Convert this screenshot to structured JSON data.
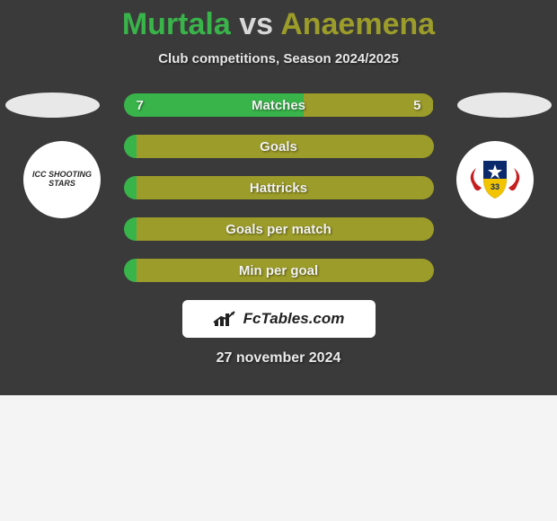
{
  "colors": {
    "page_bg": "#f4f4f4",
    "panel_bg": "#3a3a3a",
    "player1": "#39b44a",
    "player2": "#9c9c2a",
    "neutral_text": "#d8d8d8",
    "white": "#ffffff",
    "pill_bg": "#e8e8e8"
  },
  "title": {
    "player1": "Murtala",
    "vs": "vs",
    "player2": "Anaemena"
  },
  "subtitle": "Club competitions, Season 2024/2025",
  "side_logos": {
    "left_text": "ICC SHOOTING STARS",
    "right_alt": "REMO STARS FOOTBALL CLUB",
    "right_colors": {
      "wing": "#c61f1f",
      "shield_top": "#0b2a6b",
      "shield_bottom": "#f2c400",
      "star": "#ffffff"
    }
  },
  "bars": [
    {
      "id": "matches",
      "label": "Matches",
      "left_value": "7",
      "right_value": "5",
      "left_pct": 58,
      "right_pct": 42
    },
    {
      "id": "goals",
      "label": "Goals",
      "left_value": "",
      "right_value": "",
      "left_pct": 0,
      "right_pct": 100
    },
    {
      "id": "hattricks",
      "label": "Hattricks",
      "left_value": "",
      "right_value": "",
      "left_pct": 0,
      "right_pct": 100
    },
    {
      "id": "gpm",
      "label": "Goals per match",
      "left_value": "",
      "right_value": "",
      "left_pct": 0,
      "right_pct": 100
    },
    {
      "id": "mpg",
      "label": "Min per goal",
      "left_value": "",
      "right_value": "",
      "left_pct": 0,
      "right_pct": 100
    }
  ],
  "branding": {
    "text": "FcTables.com"
  },
  "date": "27 november 2024"
}
